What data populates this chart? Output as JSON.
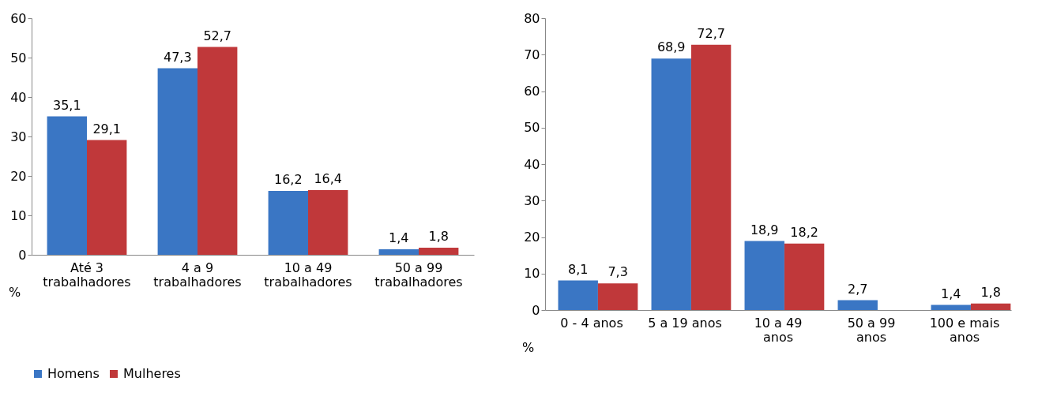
{
  "chart_data": [
    {
      "type": "bar",
      "categories": [
        "Até 3\ntrabalhadores",
        "4 a 9\ntrabalhadores",
        "10 a 49\ntrabalhadores",
        "50 a 99\ntrabalhadores"
      ],
      "ylabel": "%",
      "ylim": [
        0,
        60
      ],
      "yticks": [
        0,
        10,
        20,
        30,
        40,
        50,
        60
      ],
      "grid": false,
      "legend": "bottom",
      "series": [
        {
          "name": "Homens",
          "color": "#3a76c4",
          "values": [
            35.1,
            47.3,
            16.2,
            1.4
          ],
          "value_labels": [
            "35,1",
            "47,3",
            "16,2",
            "1,4"
          ]
        },
        {
          "name": "Mulheres",
          "color": "#c0383a",
          "values": [
            29.1,
            52.7,
            16.4,
            1.8
          ],
          "value_labels": [
            "29,1",
            "52,7",
            "16,4",
            "1,8"
          ]
        }
      ]
    },
    {
      "type": "bar",
      "categories": [
        "0 - 4 anos",
        "5 a 19 anos",
        "10 a 49\nanos",
        "50 a 99\nanos",
        "100 e mais\nanos"
      ],
      "ylabel": "%",
      "ylim": [
        0,
        80
      ],
      "yticks": [
        0,
        10,
        20,
        30,
        40,
        50,
        60,
        70,
        80
      ],
      "grid": false,
      "legend": "bottom",
      "series": [
        {
          "name": "Homens",
          "color": "#3a76c4",
          "values": [
            8.1,
            68.9,
            18.9,
            2.7,
            1.4
          ],
          "value_labels": [
            "8,1",
            "68,9",
            "18,9",
            "2,7",
            "1,4"
          ]
        },
        {
          "name": "Mulheres",
          "color": "#c0383a",
          "values": [
            7.3,
            72.7,
            18.2,
            null,
            1.8
          ],
          "value_labels": [
            "7,3",
            "72,7",
            "18,2",
            null,
            "1,8"
          ]
        }
      ]
    }
  ]
}
